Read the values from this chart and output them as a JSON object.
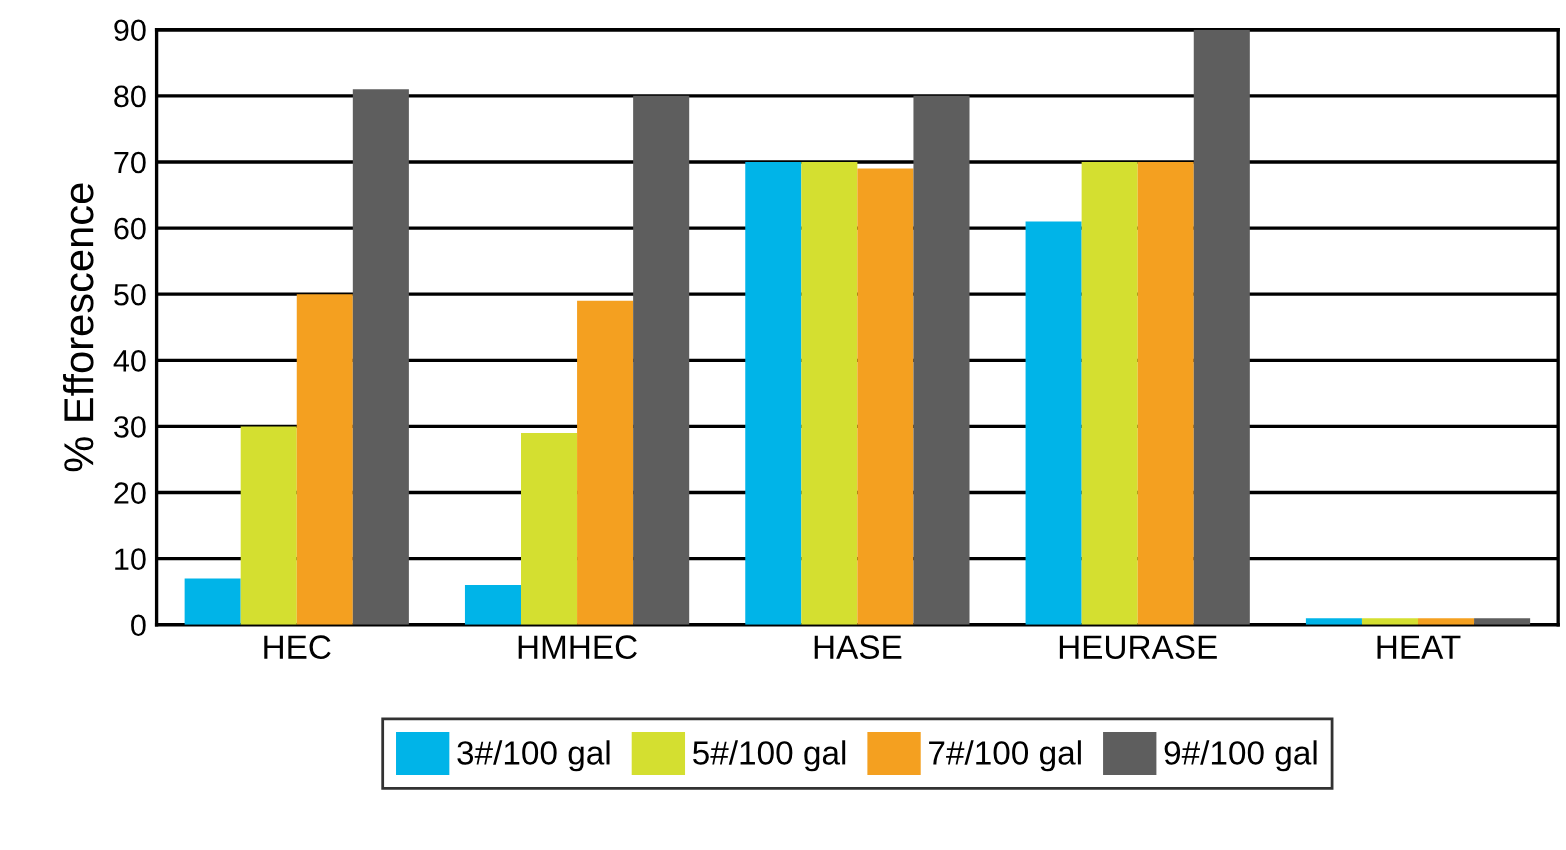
{
  "chart_data": {
    "type": "bar",
    "ylabel": "% Efforescence",
    "categories": [
      "HEC",
      "HMHEC",
      "HASE",
      "HEURASE",
      "HEAT"
    ],
    "series": [
      {
        "name": "3#/100 gal",
        "color": "#00b4e8",
        "values": [
          7,
          6,
          70,
          61,
          1
        ]
      },
      {
        "name": "5#/100 gal",
        "color": "#d4df30",
        "values": [
          30,
          29,
          70,
          70,
          1
        ]
      },
      {
        "name": "7#/100 gal",
        "color": "#f4a020",
        "values": [
          50,
          49,
          69,
          70,
          1
        ]
      },
      {
        "name": "9#/100 gal",
        "color": "#5e5e5e",
        "values": [
          81,
          80,
          80,
          90,
          1
        ]
      }
    ],
    "ylim": [
      0,
      90
    ],
    "yticks": [
      0,
      10,
      20,
      30,
      40,
      50,
      60,
      70,
      80,
      90
    ],
    "grid": "y",
    "legend": "bottom"
  }
}
